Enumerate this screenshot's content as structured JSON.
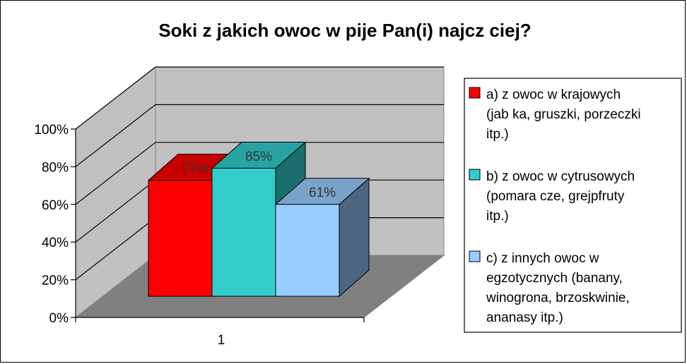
{
  "chart_data": {
    "type": "bar",
    "title": "Soki z jakich owoc  w pije Pan(i) najcz    ciej?",
    "categories": [
      "1"
    ],
    "series": [
      {
        "name": "a) z owoc  w krajowych (jab ka, gruszki, porzeczki itp.)",
        "values": [
          77
        ],
        "label": "77%",
        "color": "#ff0000",
        "side_color": "#9e0000",
        "top_color": "#c80000"
      },
      {
        "name": "b) z owoc  w cytrusowych (pomara  cze, grejpfruty itp.)",
        "values": [
          85
        ],
        "label": "85%",
        "color": "#33cccc",
        "side_color": "#1c6e6e",
        "top_color": "#27a3a3"
      },
      {
        "name": "c) z innych owoc  w egzotycznych (banany, winogrona, brzoskwinie, ananasy itp.)",
        "values": [
          61
        ],
        "label": "61%",
        "color": "#99ccff",
        "side_color": "#4d6680",
        "top_color": "#7aa3cc"
      }
    ],
    "legend_lines": [
      [
        "a) z owoc  w krajowych",
        "(jab ka, gruszki, porzeczki",
        "itp.)"
      ],
      [
        "b) z owoc  w cytrusowych",
        "(pomara  cze, grejpfruty",
        "itp.)"
      ],
      [
        "c) z innych owoc  w",
        "egzotycznych (banany,",
        "winogrona, brzoskwinie,",
        "ananasy itp.)"
      ]
    ],
    "yticks": [
      "0%",
      "20%",
      "40%",
      "60%",
      "80%",
      "100%"
    ],
    "ylim": [
      0,
      100
    ],
    "grid": true,
    "legend_position": "right",
    "projection": "3d"
  }
}
